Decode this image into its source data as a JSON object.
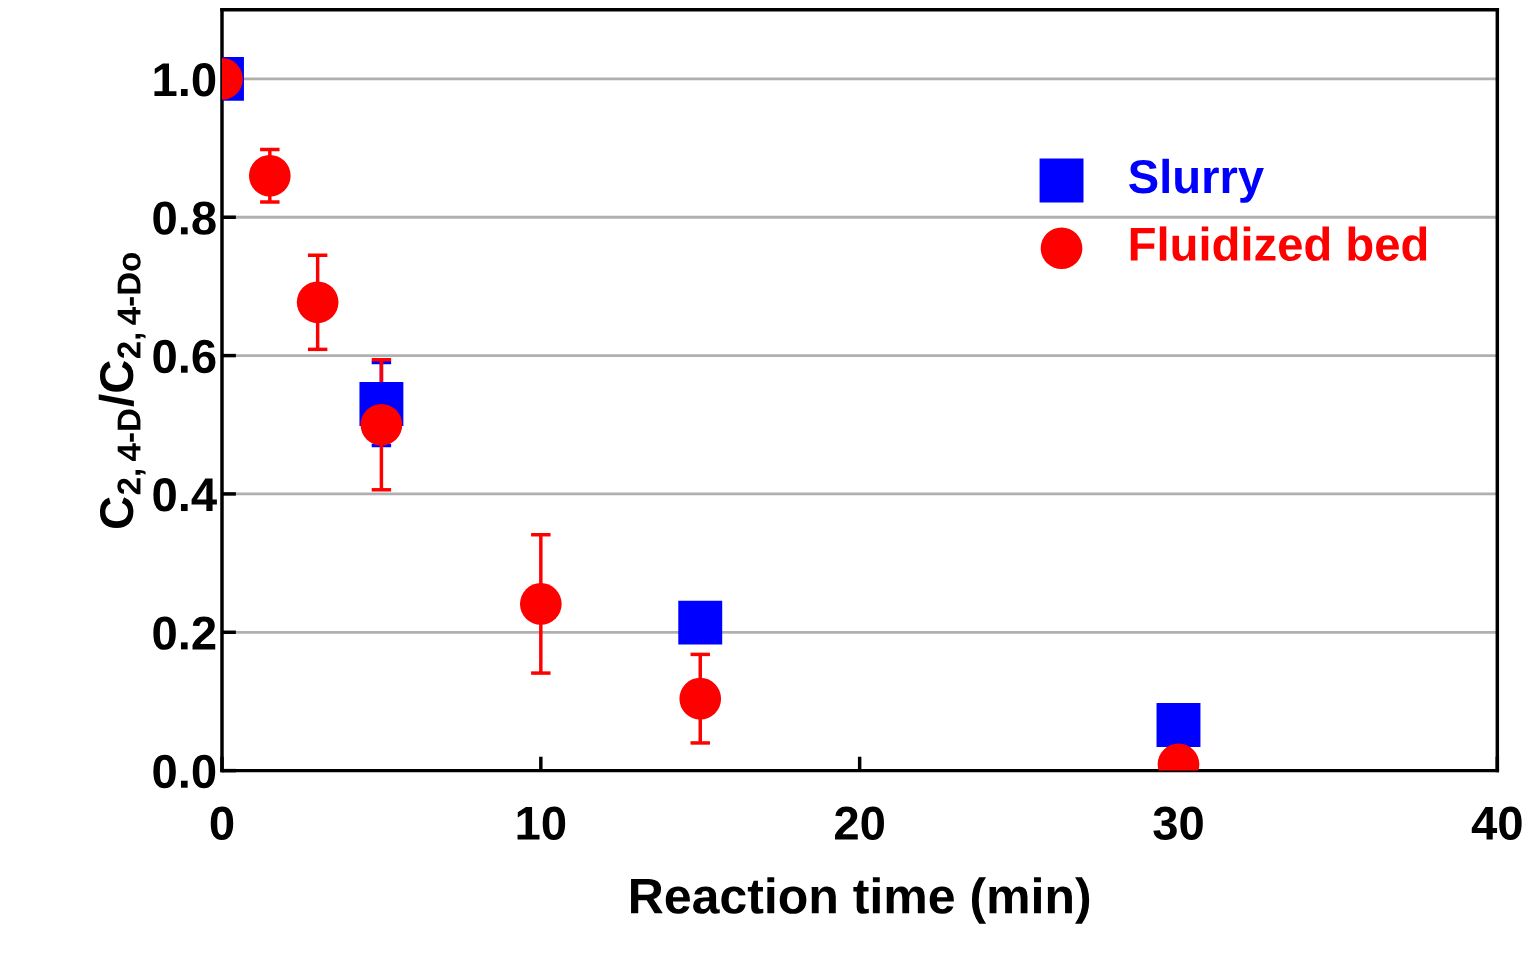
{
  "chart_data": {
    "type": "scatter",
    "xlabel": "Reaction time (min)",
    "ylabel": "C$_{2,4-D}$/C$_{2,4-Do}$",
    "xlim": [
      0,
      40
    ],
    "xticks": [
      0,
      10,
      20,
      30,
      40
    ],
    "ylim": [
      0,
      1.1
    ],
    "yticks": [
      {
        "value": 0,
        "label": "0.0"
      },
      0.2,
      0.4,
      0.6,
      0.8,
      {
        "value": 1,
        "label": "1.0"
      }
    ],
    "grid": "y",
    "legend": "top right",
    "series": [
      {
        "name": "Slurry",
        "color": "#0000ff",
        "marker": "square",
        "x": [
          0,
          5,
          15,
          30
        ],
        "values": [
          1.0,
          0.53,
          0.214,
          0.066
        ],
        "errors": [
          null,
          0.06,
          null,
          null
        ]
      },
      {
        "name": "Fluidized bed",
        "color": "#ff0000",
        "marker": "circle",
        "x": [
          0,
          1.5,
          3,
          5,
          10,
          15,
          30
        ],
        "values": [
          1.0,
          0.86,
          0.677,
          0.5,
          0.241,
          0.104,
          0.009
        ],
        "errors": [
          null,
          0.038,
          0.068,
          0.094,
          0.1,
          0.064,
          null
        ]
      }
    ]
  }
}
